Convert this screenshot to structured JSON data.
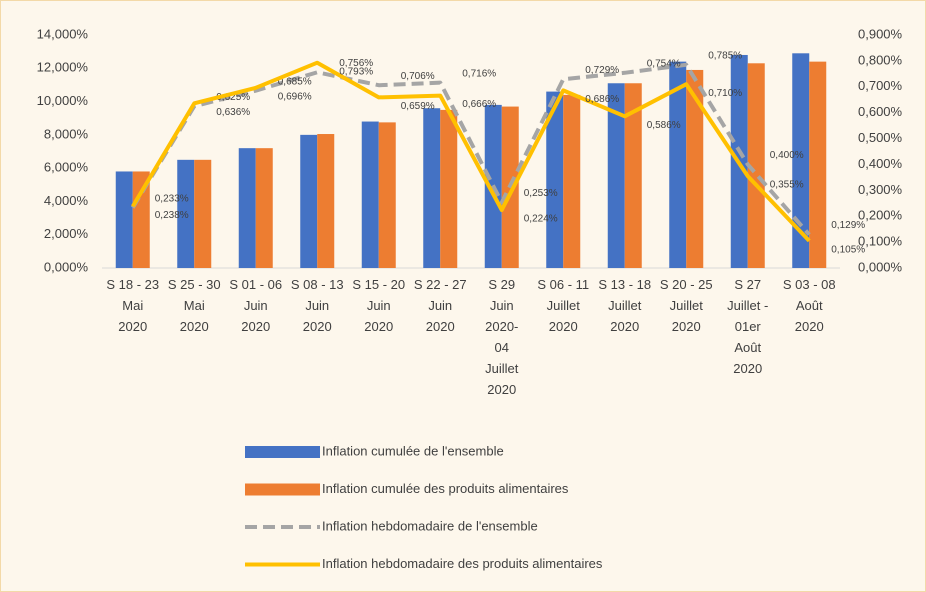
{
  "chart_data": {
    "type": "bar-line",
    "categories": [
      "S 18 - 23\nMai\n2020",
      "S 25 - 30\nMai\n2020",
      "S 01 - 06\nJuin\n2020",
      "S 08 - 13\nJuin\n2020",
      "S 15 - 20\nJuin\n2020",
      "S 22 - 27\nJuin\n2020",
      "S 29\nJuin\n2020-\n04\nJuillet\n2020",
      "S 06 - 11\nJuillet\n2020",
      "S 13 - 18\nJuillet\n2020",
      "S 20 - 25\nJuillet\n2020",
      "S 27\nJuillet -\n01er\nAoût\n2020",
      "S 03 - 08\nAoût\n2020"
    ],
    "series": [
      {
        "name": "Inflation cumulée de l'ensemble",
        "color": "#4472c4",
        "kind": "bar",
        "values": [
          5.8,
          6.5,
          7.2,
          8.0,
          8.8,
          9.6,
          9.8,
          10.6,
          11.1,
          12.4,
          12.8,
          12.9
        ]
      },
      {
        "name": "Inflation cumulée des produits alimentaires",
        "color": "#ed7d31",
        "kind": "bar",
        "values": [
          5.8,
          6.5,
          7.2,
          8.05,
          8.75,
          9.5,
          9.7,
          10.4,
          11.1,
          11.9,
          12.3,
          12.4
        ]
      },
      {
        "name": "Inflation hebdomadaire de l'ensemble",
        "color": "#a5a5a5",
        "kind": "line",
        "dashed": true,
        "axis": "y2",
        "values": [
          0.233,
          0.625,
          0.685,
          0.756,
          0.706,
          0.716,
          0.253,
          0.729,
          0.754,
          0.785,
          0.4,
          0.129
        ],
        "value_labels": [
          "0,233%",
          "0,625%",
          "0,685%",
          "0,756%",
          "0,706%",
          "0,716%",
          "0,253%",
          "0,729%",
          "0,754%",
          "0,785%",
          "0,400%",
          "0,129%"
        ]
      },
      {
        "name": "Inflation hebdomadaire des produits alimentaires",
        "color": "#ffc000",
        "kind": "line",
        "dashed": false,
        "axis": "y2",
        "values": [
          0.238,
          0.636,
          0.696,
          0.793,
          0.659,
          0.666,
          0.224,
          0.686,
          0.586,
          0.71,
          0.355,
          0.105
        ],
        "value_labels": [
          "0,238%",
          "0,636%",
          "0,696%",
          "0,793%",
          "0,659%",
          "0,666%",
          "0,224%",
          "0,686%",
          "0,586%",
          "0,710%",
          "0,355%",
          "0,105%"
        ]
      }
    ],
    "ylim": [
      0,
      14
    ],
    "yticks": [
      {
        "value": 0,
        "label": "0,000%"
      },
      {
        "value": 2,
        "label": "2,000%"
      },
      {
        "value": 4,
        "label": "4,000%"
      },
      {
        "value": 6,
        "label": "6,000%"
      },
      {
        "value": 8,
        "label": "8,000%"
      },
      {
        "value": 10,
        "label": "10,000%"
      },
      {
        "value": 12,
        "label": "12,000%"
      },
      {
        "value": 14,
        "label": "14,000%"
      }
    ],
    "y2lim": [
      0,
      0.9
    ],
    "y2ticks": [
      {
        "value": 0,
        "label": "0,000%"
      },
      {
        "value": 0.1,
        "label": "0,100%"
      },
      {
        "value": 0.2,
        "label": "0,200%"
      },
      {
        "value": 0.3,
        "label": "0,300%"
      },
      {
        "value": 0.4,
        "label": "0,400%"
      },
      {
        "value": 0.5,
        "label": "0,500%"
      },
      {
        "value": 0.6,
        "label": "0,600%"
      },
      {
        "value": 0.7,
        "label": "0,700%"
      },
      {
        "value": 0.8,
        "label": "0,800%"
      },
      {
        "value": 0.9,
        "label": "0,900%"
      }
    ],
    "legend": "bottom"
  }
}
